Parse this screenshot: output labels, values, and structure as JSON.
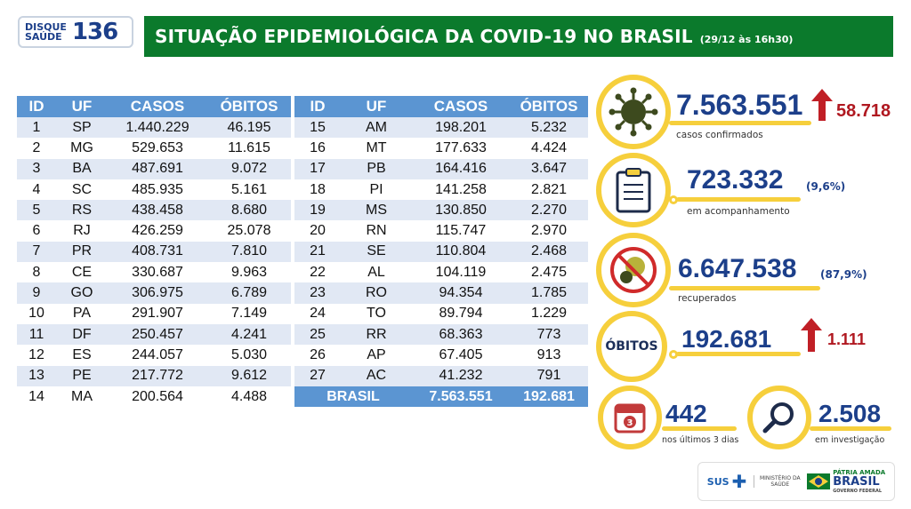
{
  "header": {
    "logo_disque": "DISQUE",
    "logo_saude": "SAÚDE",
    "logo_number": "136",
    "title": "SITUAÇÃO EPIDEMIOLÓGICA DA COVID-19 NO BRASIL",
    "date": "(29/12 às 16h30)"
  },
  "table": {
    "headers": [
      "ID",
      "UF",
      "CASOS",
      "ÓBITOS"
    ],
    "rows_left": [
      [
        "1",
        "SP",
        "1.440.229",
        "46.195"
      ],
      [
        "2",
        "MG",
        "529.653",
        "11.615"
      ],
      [
        "3",
        "BA",
        "487.691",
        "9.072"
      ],
      [
        "4",
        "SC",
        "485.935",
        "5.161"
      ],
      [
        "5",
        "RS",
        "438.458",
        "8.680"
      ],
      [
        "6",
        "RJ",
        "426.259",
        "25.078"
      ],
      [
        "7",
        "PR",
        "408.731",
        "7.810"
      ],
      [
        "8",
        "CE",
        "330.687",
        "9.963"
      ],
      [
        "9",
        "GO",
        "306.975",
        "6.789"
      ],
      [
        "10",
        "PA",
        "291.907",
        "7.149"
      ],
      [
        "11",
        "DF",
        "250.457",
        "4.241"
      ],
      [
        "12",
        "ES",
        "244.057",
        "5.030"
      ],
      [
        "13",
        "PE",
        "217.772",
        "9.612"
      ],
      [
        "14",
        "MA",
        "200.564",
        "4.488"
      ]
    ],
    "rows_right": [
      [
        "15",
        "AM",
        "198.201",
        "5.232"
      ],
      [
        "16",
        "MT",
        "177.633",
        "4.424"
      ],
      [
        "17",
        "PB",
        "164.416",
        "3.647"
      ],
      [
        "18",
        "PI",
        "141.258",
        "2.821"
      ],
      [
        "19",
        "MS",
        "130.850",
        "2.270"
      ],
      [
        "20",
        "RN",
        "115.747",
        "2.970"
      ],
      [
        "21",
        "SE",
        "110.804",
        "2.468"
      ],
      [
        "22",
        "AL",
        "104.119",
        "2.475"
      ],
      [
        "23",
        "RO",
        "94.354",
        "1.785"
      ],
      [
        "24",
        "TO",
        "89.794",
        "1.229"
      ],
      [
        "25",
        "RR",
        "68.363",
        "773"
      ],
      [
        "26",
        "AP",
        "67.405",
        "913"
      ],
      [
        "27",
        "AC",
        "41.232",
        "791"
      ]
    ],
    "total": {
      "label": "BRASIL",
      "casos": "7.563.551",
      "obitos": "192.681"
    }
  },
  "stats": {
    "confirmed": {
      "value": "7.563.551",
      "delta": "58.718",
      "label": "casos confirmados",
      "icon": "virus-icon"
    },
    "monitoring": {
      "value": "723.332",
      "pct": "(9,6%)",
      "label": "em acompanhamento",
      "icon": "clipboard-icon"
    },
    "recovered": {
      "value": "6.647.538",
      "pct": "(87,9%)",
      "label": "recuperados",
      "icon": "no-virus-icon"
    },
    "deaths": {
      "title": "ÓBITOS",
      "value": "192.681",
      "delta": "1.111"
    },
    "last3days": {
      "value": "442",
      "label": "nos últimos 3 dias",
      "icon": "calendar-icon",
      "calendar_num": "3"
    },
    "investigation": {
      "value": "2.508",
      "label": "em investigação",
      "icon": "magnifier-icon"
    }
  },
  "footer": {
    "sus": "SUS",
    "ministry_line1": "MINISTÉRIO DA",
    "ministry_line2": "SAÚDE",
    "patria": "PÁTRIA AMADA",
    "brasil": "BRASIL",
    "gov": "GOVERNO FEDERAL"
  },
  "colors": {
    "header_green": "#0b7a2c",
    "table_blue": "#5b95d2",
    "row_alt": "#e1e8f4",
    "accent_yellow": "#f6cf3c",
    "number_blue": "#1c3f8a",
    "delta_red": "#b01820"
  }
}
